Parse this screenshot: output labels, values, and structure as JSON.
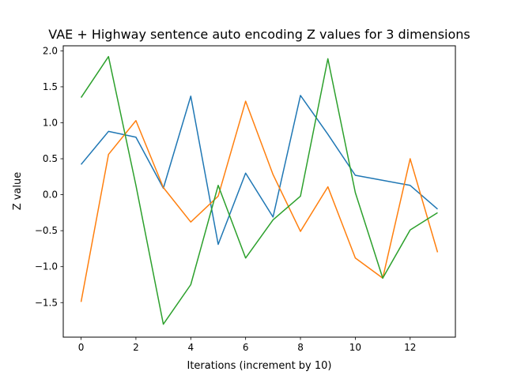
{
  "chart_data": {
    "type": "line",
    "title": "VAE + Highway sentence auto encoding Z values for 3 dimensions",
    "xlabel": "Iterations (increment by 10)",
    "ylabel": "Z value",
    "x": [
      0,
      1,
      2,
      3,
      4,
      5,
      6,
      7,
      8,
      9,
      10,
      11,
      12,
      13
    ],
    "xlim": [
      -0.65,
      13.65
    ],
    "ylim": [
      -1.98,
      2.07
    ],
    "xticks": [
      0,
      2,
      4,
      6,
      8,
      10,
      12
    ],
    "xtick_labels": [
      "0",
      "2",
      "4",
      "6",
      "8",
      "10",
      "12"
    ],
    "yticks": [
      2.0,
      1.5,
      1.0,
      0.5,
      0.0,
      -0.5,
      -1.0,
      -1.5
    ],
    "ytick_labels": [
      "2.0",
      "1.5",
      "1.0",
      "0.5",
      "0.0",
      "−0.5",
      "−1.0",
      "−1.5"
    ],
    "grid": false,
    "legend": "none",
    "series": [
      {
        "color": "#1f77b4",
        "values": [
          0.42,
          0.88,
          0.8,
          0.09,
          1.37,
          -0.69,
          0.3,
          -0.31,
          1.38,
          0.84,
          0.27,
          0.2,
          0.13,
          -0.2
        ]
      },
      {
        "color": "#ff7f0e",
        "values": [
          -1.49,
          0.56,
          1.03,
          0.1,
          -0.38,
          -0.02,
          1.3,
          0.28,
          -0.51,
          0.11,
          -0.88,
          -1.16,
          0.5,
          -0.8
        ]
      },
      {
        "color": "#2ca02c",
        "values": [
          1.35,
          1.92,
          0.13,
          -1.8,
          -1.25,
          0.13,
          -0.88,
          -0.35,
          -0.02,
          1.89,
          0.03,
          -1.16,
          -0.49,
          -0.25
        ]
      }
    ]
  }
}
